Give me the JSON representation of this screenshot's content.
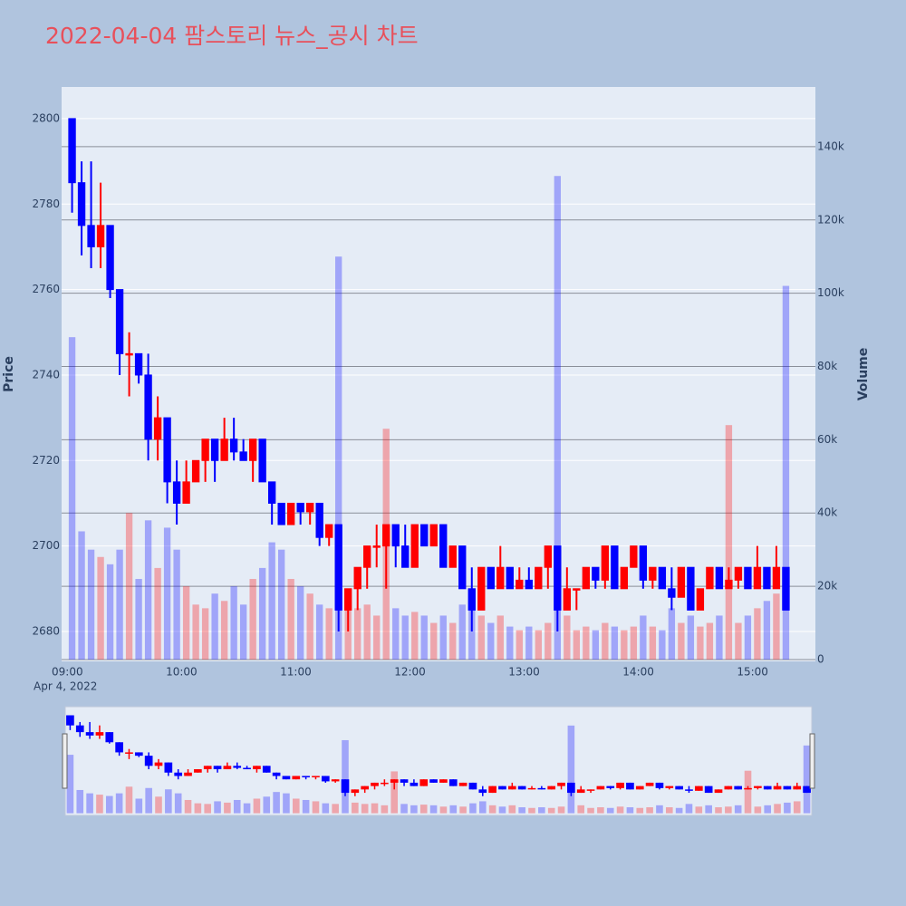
{
  "chart_data": {
    "type": "candlestick",
    "title": "2022-04-04 팜스토리 뉴스_공시 차트",
    "y_label": "Price",
    "y2_label": "Volume",
    "x_date_label": "Apr 4, 2022",
    "increasing_color": "#ff0000",
    "decreasing_color": "#0000ff",
    "x": [
      "09:00",
      "09:05",
      "09:10",
      "09:15",
      "09:20",
      "09:25",
      "09:30",
      "09:35",
      "09:40",
      "09:45",
      "09:50",
      "09:55",
      "10:00",
      "10:05",
      "10:10",
      "10:15",
      "10:20",
      "10:25",
      "10:30",
      "10:35",
      "10:40",
      "10:45",
      "10:50",
      "10:55",
      "11:00",
      "11:05",
      "11:10",
      "11:15",
      "11:20",
      "11:25",
      "11:30",
      "11:35",
      "11:40",
      "11:45",
      "11:50",
      "11:55",
      "12:00",
      "12:05",
      "12:10",
      "12:15",
      "12:20",
      "12:25",
      "12:30",
      "12:35",
      "12:40",
      "12:45",
      "12:50",
      "12:55",
      "13:00",
      "13:05",
      "13:10",
      "13:15",
      "13:20",
      "13:25",
      "13:30",
      "13:35",
      "13:40",
      "13:45",
      "13:50",
      "13:55",
      "14:00",
      "14:05",
      "14:10",
      "14:15",
      "14:20",
      "14:25",
      "14:30",
      "14:35",
      "14:40",
      "14:45",
      "14:50",
      "14:55",
      "15:00",
      "15:05",
      "15:10",
      "15:15"
    ],
    "open": [
      2800,
      2785,
      2775,
      2770,
      2775,
      2760,
      2745,
      2745,
      2740,
      2725,
      2730,
      2715,
      2710,
      2715,
      2720,
      2725,
      2720,
      2725,
      2722,
      2720,
      2725,
      2715,
      2710,
      2705,
      2710,
      2708,
      2710,
      2702,
      2705,
      2685,
      2690,
      2695,
      2700,
      2700,
      2705,
      2700,
      2695,
      2705,
      2700,
      2705,
      2695,
      2700,
      2690,
      2685,
      2695,
      2690,
      2695,
      2690,
      2692,
      2690,
      2695,
      2700,
      2685,
      2690,
      2690,
      2695,
      2692,
      2700,
      2690,
      2695,
      2700,
      2692,
      2695,
      2690,
      2688,
      2695,
      2685,
      2690,
      2695,
      2690,
      2692,
      2695,
      2690,
      2695,
      2690,
      2695
    ],
    "high": [
      2800,
      2790,
      2790,
      2785,
      2775,
      2760,
      2750,
      2745,
      2745,
      2735,
      2730,
      2720,
      2720,
      2720,
      2725,
      2725,
      2730,
      2730,
      2725,
      2725,
      2725,
      2715,
      2710,
      2710,
      2710,
      2710,
      2710,
      2705,
      2705,
      2690,
      2695,
      2700,
      2705,
      2705,
      2705,
      2705,
      2705,
      2705,
      2705,
      2705,
      2700,
      2700,
      2695,
      2695,
      2695,
      2700,
      2695,
      2695,
      2695,
      2695,
      2700,
      2700,
      2695,
      2690,
      2695,
      2695,
      2700,
      2700,
      2695,
      2700,
      2700,
      2695,
      2695,
      2695,
      2695,
      2695,
      2690,
      2695,
      2695,
      2695,
      2695,
      2695,
      2700,
      2695,
      2700,
      2695
    ],
    "low": [
      2778,
      2768,
      2765,
      2765,
      2758,
      2740,
      2735,
      2738,
      2720,
      2720,
      2710,
      2705,
      2710,
      2715,
      2715,
      2715,
      2720,
      2720,
      2720,
      2715,
      2715,
      2705,
      2705,
      2705,
      2705,
      2705,
      2700,
      2700,
      2680,
      2680,
      2685,
      2690,
      2695,
      2690,
      2695,
      2695,
      2695,
      2700,
      2700,
      2695,
      2695,
      2690,
      2680,
      2685,
      2690,
      2690,
      2690,
      2690,
      2690,
      2690,
      2690,
      2680,
      2685,
      2685,
      2690,
      2690,
      2690,
      2690,
      2690,
      2695,
      2690,
      2690,
      2690,
      2685,
      2688,
      2685,
      2685,
      2690,
      2690,
      2690,
      2690,
      2690,
      2690,
      2690,
      2690,
      2685
    ],
    "close": [
      2785,
      2775,
      2770,
      2775,
      2760,
      2745,
      2745,
      2740,
      2725,
      2730,
      2715,
      2710,
      2715,
      2720,
      2725,
      2720,
      2725,
      2722,
      2720,
      2725,
      2715,
      2710,
      2705,
      2710,
      2708,
      2710,
      2702,
      2705,
      2685,
      2690,
      2695,
      2700,
      2700,
      2705,
      2700,
      2695,
      2705,
      2700,
      2705,
      2695,
      2700,
      2690,
      2685,
      2695,
      2690,
      2695,
      2690,
      2692,
      2690,
      2695,
      2700,
      2685,
      2690,
      2690,
      2695,
      2692,
      2700,
      2690,
      2695,
      2700,
      2692,
      2695,
      2690,
      2688,
      2695,
      2685,
      2690,
      2695,
      2690,
      2692,
      2695,
      2690,
      2695,
      2690,
      2695,
      2685
    ],
    "volume": [
      88000,
      35000,
      30000,
      28000,
      26000,
      30000,
      40000,
      22000,
      38000,
      25000,
      36000,
      30000,
      20000,
      15000,
      14000,
      18000,
      16000,
      20000,
      15000,
      22000,
      25000,
      32000,
      30000,
      22000,
      20000,
      18000,
      15000,
      14000,
      110000,
      16000,
      14000,
      15000,
      12000,
      63000,
      14000,
      12000,
      13000,
      12000,
      10000,
      12000,
      10000,
      15000,
      18000,
      12000,
      10000,
      12000,
      9000,
      8000,
      9000,
      8000,
      10000,
      132000,
      12000,
      8000,
      9000,
      8000,
      10000,
      9000,
      8000,
      9000,
      12000,
      9000,
      8000,
      14000,
      10000,
      12000,
      9000,
      10000,
      12000,
      64000,
      10000,
      12000,
      14000,
      16000,
      18000,
      102000
    ],
    "xlim": [
      "08:57",
      "15:33"
    ],
    "xticks": [
      "09:00",
      "10:00",
      "11:00",
      "12:00",
      "13:00",
      "14:00",
      "15:00"
    ],
    "ylim": [
      2673,
      2807.4
    ],
    "yticks": [
      2680,
      2700,
      2720,
      2740,
      2760,
      2780,
      2800
    ],
    "y2lim": [
      -500,
      156300
    ],
    "y2ticks": [
      0,
      {
        "value": 20000,
        "label": "20k"
      },
      {
        "value": 40000,
        "label": "40k"
      },
      {
        "value": 60000,
        "label": "60k"
      },
      {
        "value": 80000,
        "label": "80k"
      },
      {
        "value": 100000,
        "label": "100k"
      },
      {
        "value": 120000,
        "label": "120k"
      },
      {
        "value": 140000,
        "label": "140k"
      }
    ],
    "grid": true
  }
}
